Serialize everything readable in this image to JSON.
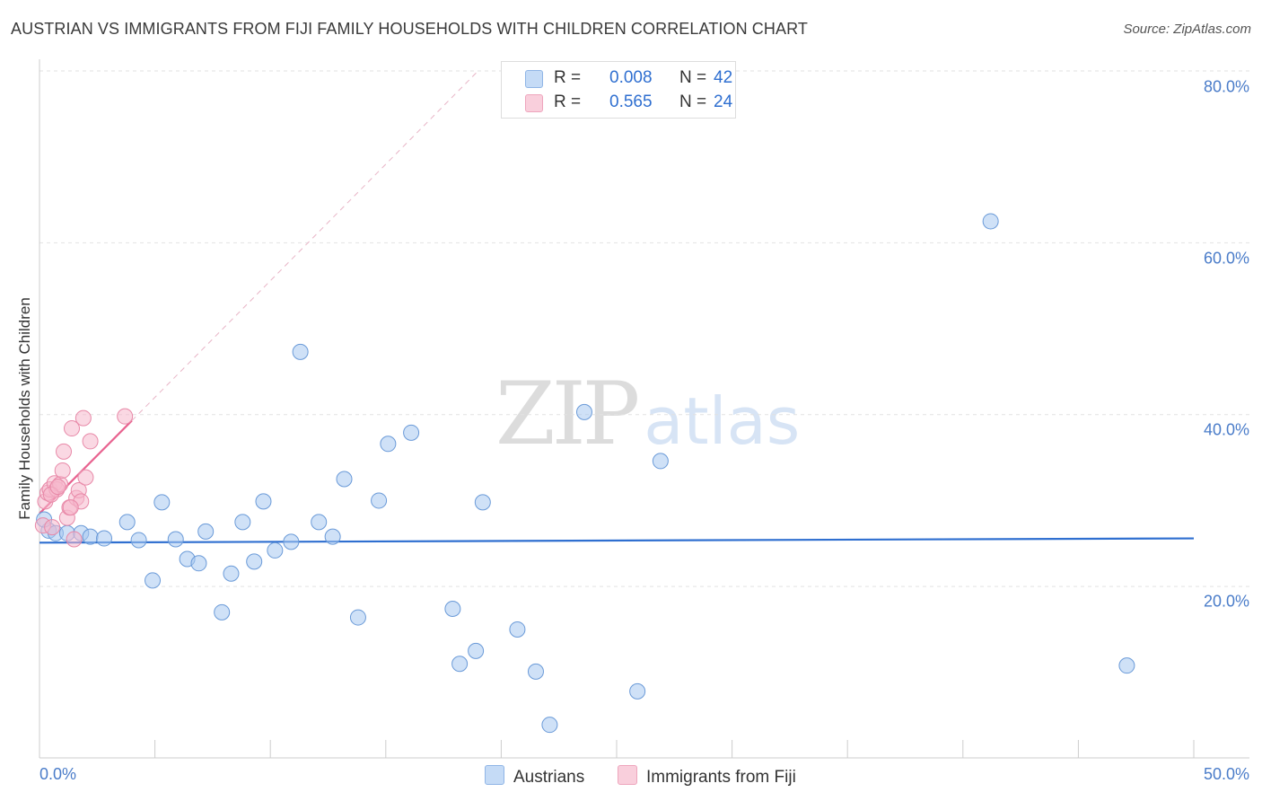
{
  "title": "AUSTRIAN VS IMMIGRANTS FROM FIJI FAMILY HOUSEHOLDS WITH CHILDREN CORRELATION CHART",
  "source": "Source: ZipAtlas.com",
  "watermark": {
    "zip": "ZIP",
    "atlas": "atlas"
  },
  "legend": {
    "rows": [
      {
        "r_label": "R =",
        "r_value": "0.008",
        "n_label": "N =",
        "n_value": "42",
        "color": "#a8c8f0"
      },
      {
        "r_label": "R =",
        "r_value": "0.565",
        "n_label": "N =",
        "n_value": "24",
        "color": "#f5b8cc"
      }
    ]
  },
  "chart_data": {
    "type": "scatter",
    "title": "AUSTRIAN VS IMMIGRANTS FROM FIJI FAMILY HOUSEHOLDS WITH CHILDREN CORRELATION CHART",
    "xlabel": "",
    "ylabel": "Family Households with Children",
    "xlim": [
      0,
      50
    ],
    "ylim": [
      0,
      80
    ],
    "x_tick_labels": [
      "0.0%",
      "50.0%"
    ],
    "y_ticks": [
      20,
      40,
      60,
      80
    ],
    "y_tick_labels": [
      "20.0%",
      "40.0%",
      "60.0%",
      "80.0%"
    ],
    "grid": true,
    "series": [
      {
        "name": "Austrians",
        "color": "#a8c8f0",
        "stroke": "#6a9ad8",
        "line_color": "#2f6fd0",
        "trend": {
          "x": [
            0,
            50
          ],
          "y": [
            25.1,
            25.6
          ]
        },
        "points": [
          [
            0.4,
            26.5
          ],
          [
            0.7,
            26.2
          ],
          [
            1.2,
            26.2
          ],
          [
            1.8,
            26.2
          ],
          [
            2.2,
            25.8
          ],
          [
            2.8,
            25.6
          ],
          [
            3.8,
            27.5
          ],
          [
            4.3,
            25.4
          ],
          [
            4.9,
            20.7
          ],
          [
            5.3,
            29.8
          ],
          [
            5.9,
            25.5
          ],
          [
            6.4,
            23.2
          ],
          [
            6.9,
            22.7
          ],
          [
            7.2,
            26.4
          ],
          [
            7.9,
            17.0
          ],
          [
            8.3,
            21.5
          ],
          [
            8.8,
            27.5
          ],
          [
            9.3,
            22.9
          ],
          [
            9.7,
            29.9
          ],
          [
            10.2,
            24.2
          ],
          [
            10.9,
            25.2
          ],
          [
            11.3,
            47.3
          ],
          [
            12.1,
            27.5
          ],
          [
            12.7,
            25.8
          ],
          [
            13.2,
            32.5
          ],
          [
            13.8,
            16.4
          ],
          [
            14.7,
            30.0
          ],
          [
            15.1,
            36.6
          ],
          [
            16.1,
            37.9
          ],
          [
            17.9,
            17.4
          ],
          [
            18.2,
            11.0
          ],
          [
            18.9,
            12.5
          ],
          [
            19.2,
            29.8
          ],
          [
            20.7,
            15.0
          ],
          [
            21.5,
            10.1
          ],
          [
            22.1,
            3.9
          ],
          [
            23.6,
            40.3
          ],
          [
            25.9,
            7.8
          ],
          [
            26.9,
            34.6
          ],
          [
            41.2,
            62.5
          ],
          [
            47.1,
            10.8
          ],
          [
            0.2,
            27.8
          ]
        ]
      },
      {
        "name": "Immigrants from Fiji",
        "color": "#f5b8cc",
        "stroke": "#e889a8",
        "line_color": "#e8628f",
        "trend": {
          "x": [
            0,
            4.0
          ],
          "y": [
            28.5,
            39.3
          ]
        },
        "trend_extension": {
          "x": [
            4.0,
            19.0
          ],
          "y": [
            39.3,
            80
          ]
        },
        "points": [
          [
            0.15,
            27.1
          ],
          [
            0.25,
            29.9
          ],
          [
            0.35,
            30.9
          ],
          [
            0.45,
            31.3
          ],
          [
            0.55,
            26.9
          ],
          [
            0.65,
            32.0
          ],
          [
            0.75,
            31.3
          ],
          [
            0.9,
            31.9
          ],
          [
            1.0,
            33.5
          ],
          [
            1.05,
            35.7
          ],
          [
            1.2,
            28.0
          ],
          [
            1.3,
            29.2
          ],
          [
            1.4,
            38.4
          ],
          [
            1.5,
            25.5
          ],
          [
            1.6,
            30.3
          ],
          [
            1.7,
            31.2
          ],
          [
            1.8,
            29.9
          ],
          [
            1.9,
            39.6
          ],
          [
            2.0,
            32.7
          ],
          [
            2.2,
            36.9
          ],
          [
            3.7,
            39.8
          ],
          [
            1.35,
            29.2
          ],
          [
            0.5,
            30.7
          ],
          [
            0.8,
            31.6
          ]
        ]
      }
    ]
  }
}
